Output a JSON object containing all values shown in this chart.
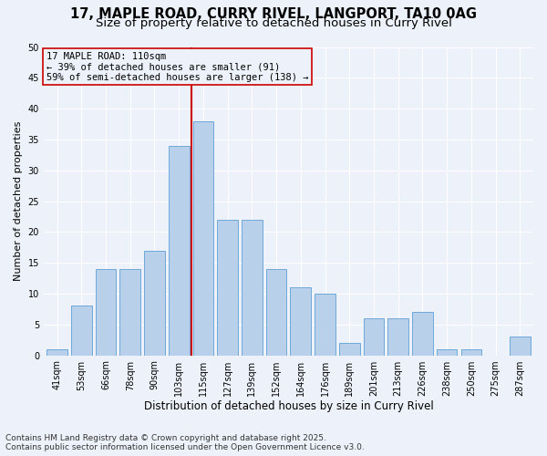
{
  "title_line1": "17, MAPLE ROAD, CURRY RIVEL, LANGPORT, TA10 0AG",
  "title_line2": "Size of property relative to detached houses in Curry Rivel",
  "xlabel": "Distribution of detached houses by size in Curry Rivel",
  "ylabel": "Number of detached properties",
  "footnote_line1": "Contains HM Land Registry data © Crown copyright and database right 2025.",
  "footnote_line2": "Contains public sector information licensed under the Open Government Licence v3.0.",
  "annotation_title": "17 MAPLE ROAD: 110sqm",
  "annotation_line1": "← 39% of detached houses are smaller (91)",
  "annotation_line2": "59% of semi-detached houses are larger (138) →",
  "vline_x": 5.5,
  "bar_labels": [
    "41sqm",
    "53sqm",
    "66sqm",
    "78sqm",
    "90sqm",
    "103sqm",
    "115sqm",
    "127sqm",
    "139sqm",
    "152sqm",
    "164sqm",
    "176sqm",
    "189sqm",
    "201sqm",
    "213sqm",
    "226sqm",
    "238sqm",
    "250sqm",
    "275sqm",
    "287sqm"
  ],
  "bar_values": [
    1,
    8,
    14,
    14,
    17,
    34,
    38,
    22,
    22,
    14,
    11,
    10,
    2,
    6,
    6,
    7,
    1,
    1,
    0,
    3
  ],
  "bar_color": "#b8d0ea",
  "bar_edgecolor": "#6ea8d8",
  "vline_color": "#cc0000",
  "annotation_box_edgecolor": "#cc0000",
  "background_color": "#edf2fa",
  "ylim": [
    0,
    50
  ],
  "title_fontsize": 10.5,
  "subtitle_fontsize": 9.5,
  "xlabel_fontsize": 8.5,
  "ylabel_fontsize": 8,
  "tick_fontsize": 7,
  "annotation_fontsize": 7.5,
  "footnote_fontsize": 6.5
}
